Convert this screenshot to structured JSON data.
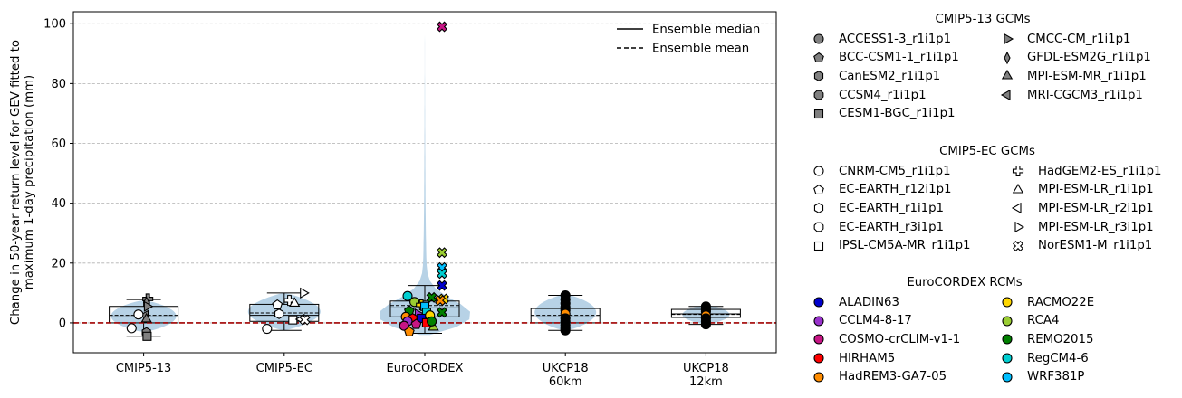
{
  "chart_data": {
    "type": "violin",
    "ylabel": "Change in 50-year return level for GEV fitted to\nmaximum 1-day precipitation (mm)",
    "ylim": [
      -10,
      104
    ],
    "yticks": [
      0,
      20,
      40,
      60,
      80,
      100
    ],
    "grid": "horizontal dashed",
    "reference_line": {
      "y": 0,
      "style": "dashed",
      "color": "#a00000"
    },
    "categories": [
      "CMIP5-13",
      "CMIP5-EC",
      "EuroCORDEX",
      "UKCP18\n60km",
      "UKCP18\n12km"
    ],
    "boxes": [
      {
        "category": "CMIP5-13",
        "whisker_low": -4.5,
        "q1": 0,
        "median": 2,
        "mean": 2.5,
        "q3": 5.5,
        "whisker_high": 7.8,
        "violin_low": -3,
        "violin_high": 7.5
      },
      {
        "category": "CMIP5-EC",
        "whisker_low": -2.5,
        "q1": 0.5,
        "median": 2.5,
        "mean": 3.3,
        "q3": 6.2,
        "whisker_high": 10,
        "violin_low": -2.5,
        "violin_high": 10
      },
      {
        "category": "EuroCORDEX",
        "whisker_low": -3.5,
        "q1": 2,
        "median": 5,
        "mean": 5.8,
        "q3": 7.3,
        "whisker_high": 12.5,
        "violin_low": -4,
        "violin_high": 99
      },
      {
        "category": "UKCP18\n60km",
        "whisker_low": -2.5,
        "q1": 0,
        "median": 2,
        "mean": 2.5,
        "q3": 4.8,
        "whisker_high": 9.2,
        "violin_low": -2.5,
        "violin_high": 9.5
      },
      {
        "category": "UKCP18\n12km",
        "whisker_low": -0.5,
        "q1": 1.8,
        "median": 3,
        "mean": 2.8,
        "q3": 4.5,
        "whisker_high": 5.5,
        "violin_low": -0.5,
        "violin_high": 6
      }
    ],
    "points": [
      {
        "category": 0,
        "x_offset": 0.12,
        "y": 8,
        "marker": "plus",
        "color": "#808080"
      },
      {
        "category": 0,
        "x_offset": 0.08,
        "y": 6.8,
        "marker": "thin-diamond",
        "color": "#808080"
      },
      {
        "category": 0,
        "x_offset": 0.1,
        "y": 5.5,
        "marker": "triangle-right",
        "color": "#808080"
      },
      {
        "category": 0,
        "x_offset": 0.05,
        "y": 2.5,
        "marker": "triangle-left",
        "color": "#808080"
      },
      {
        "category": 0,
        "x_offset": 0.08,
        "y": 1.2,
        "marker": "triangle-up",
        "color": "#808080"
      },
      {
        "category": 0,
        "x_offset": -0.15,
        "y": 2.8,
        "marker": "circle",
        "color": "#ffffff"
      },
      {
        "category": 0,
        "x_offset": -0.35,
        "y": -1.8,
        "marker": "circle",
        "color": "#ffffff"
      },
      {
        "category": 0,
        "x_offset": 0.08,
        "y": -3.2,
        "marker": "hexagon",
        "color": "#808080"
      },
      {
        "category": 0,
        "x_offset": 0.1,
        "y": -4.5,
        "marker": "square",
        "color": "#808080"
      },
      {
        "category": 1,
        "x_offset": 0.55,
        "y": 10,
        "marker": "triangle-right",
        "color": "#ffffff"
      },
      {
        "category": 1,
        "x_offset": 0.15,
        "y": 7.5,
        "marker": "plus",
        "color": "#ffffff"
      },
      {
        "category": 1,
        "x_offset": 0.3,
        "y": 6.5,
        "marker": "triangle-up",
        "color": "#ffffff"
      },
      {
        "category": 1,
        "x_offset": -0.2,
        "y": 6,
        "marker": "pentagon",
        "color": "#ffffff"
      },
      {
        "category": 1,
        "x_offset": -0.15,
        "y": 3,
        "marker": "hexagon",
        "color": "#ffffff"
      },
      {
        "category": 1,
        "x_offset": 0.25,
        "y": 1,
        "marker": "square",
        "color": "#ffffff"
      },
      {
        "category": 1,
        "x_offset": 0.5,
        "y": 1.2,
        "marker": "triangle-left",
        "color": "#ffffff"
      },
      {
        "category": 1,
        "x_offset": 0.6,
        "y": 1,
        "marker": "x-cross",
        "color": "#ffffff"
      },
      {
        "category": 1,
        "x_offset": -0.5,
        "y": -2,
        "marker": "circle",
        "color": "#ffffff"
      },
      {
        "category": 2,
        "x_offset": 0.5,
        "y": 99,
        "marker": "x-cross",
        "color": "#c71585"
      },
      {
        "category": 2,
        "x_offset": 0.5,
        "y": 23.5,
        "marker": "x-cross",
        "color": "#9acd32"
      },
      {
        "category": 2,
        "x_offset": 0.5,
        "y": 18.5,
        "marker": "x-cross",
        "color": "#00bfff"
      },
      {
        "category": 2,
        "x_offset": 0.5,
        "y": 16.5,
        "marker": "x-cross",
        "color": "#00ced1"
      },
      {
        "category": 2,
        "x_offset": 0.5,
        "y": 12.5,
        "marker": "x-cross",
        "color": "#0000cd"
      },
      {
        "category": 2,
        "x_offset": 0.2,
        "y": 8.5,
        "marker": "x-cross",
        "color": "#008000"
      },
      {
        "category": 2,
        "x_offset": 0.55,
        "y": 8,
        "marker": "x-cross",
        "color": "#ffd700"
      },
      {
        "category": 2,
        "x_offset": 0.45,
        "y": 7.5,
        "marker": "x-cross",
        "color": "#ff8c00"
      },
      {
        "category": 2,
        "x_offset": -0.5,
        "y": 9,
        "marker": "circle",
        "color": "#00ced1"
      },
      {
        "category": 2,
        "x_offset": -0.3,
        "y": 7,
        "marker": "circle",
        "color": "#9acd32"
      },
      {
        "category": 2,
        "x_offset": -0.1,
        "y": 6,
        "marker": "plus",
        "color": "#ffd700"
      },
      {
        "category": 2,
        "x_offset": 0,
        "y": 5.5,
        "marker": "square",
        "color": "#00bfff"
      },
      {
        "category": 2,
        "x_offset": -0.45,
        "y": 4,
        "marker": "pentagon",
        "color": "#008000"
      },
      {
        "category": 2,
        "x_offset": -0.2,
        "y": 3,
        "marker": "triangle-right",
        "color": "#9932cc"
      },
      {
        "category": 2,
        "x_offset": 0.05,
        "y": 3.5,
        "marker": "square",
        "color": "#00ced1"
      },
      {
        "category": 2,
        "x_offset": 0.5,
        "y": 3.5,
        "marker": "x-cross",
        "color": "#008000"
      },
      {
        "category": 2,
        "x_offset": -0.55,
        "y": 2,
        "marker": "circle",
        "color": "#ff8c00"
      },
      {
        "category": 2,
        "x_offset": -0.35,
        "y": 1.5,
        "marker": "hexagon",
        "color": "#ff0000"
      },
      {
        "category": 2,
        "x_offset": -0.1,
        "y": 1.5,
        "marker": "square",
        "color": "#0000cd"
      },
      {
        "category": 2,
        "x_offset": 0.15,
        "y": 2.5,
        "marker": "circle",
        "color": "#ffd700"
      },
      {
        "category": 2,
        "x_offset": -0.5,
        "y": 0.5,
        "marker": "circle",
        "color": "#9932cc"
      },
      {
        "category": 2,
        "x_offset": -0.25,
        "y": -0.5,
        "marker": "pentagon",
        "color": "#c71585"
      },
      {
        "category": 2,
        "x_offset": 0.05,
        "y": 0,
        "marker": "square",
        "color": "#ff0000"
      },
      {
        "category": 2,
        "x_offset": -0.6,
        "y": -1,
        "marker": "circle",
        "color": "#c71585"
      },
      {
        "category": 2,
        "x_offset": -0.45,
        "y": -3,
        "marker": "pentagon",
        "color": "#ff8c00"
      },
      {
        "category": 2,
        "x_offset": 0.25,
        "y": -1.5,
        "marker": "triangle-up",
        "color": "#9acd32"
      },
      {
        "category": 2,
        "x_offset": 0.2,
        "y": 0.5,
        "marker": "circle",
        "color": "#008000"
      },
      {
        "category": 3,
        "x_offset": 0,
        "y": 9.2,
        "marker": "circle",
        "color": "#000000"
      },
      {
        "category": 3,
        "x_offset": 0,
        "y": 7.8,
        "marker": "circle",
        "color": "#000000"
      },
      {
        "category": 3,
        "x_offset": 0,
        "y": 6.5,
        "marker": "circle",
        "color": "#000000"
      },
      {
        "category": 3,
        "x_offset": 0,
        "y": 5.2,
        "marker": "circle",
        "color": "#000000"
      },
      {
        "category": 3,
        "x_offset": 0,
        "y": 4.2,
        "marker": "circle",
        "color": "#000000"
      },
      {
        "category": 3,
        "x_offset": 0,
        "y": 3,
        "marker": "circle",
        "color": "#ff8c00"
      },
      {
        "category": 3,
        "x_offset": 0,
        "y": 1.5,
        "marker": "circle",
        "color": "#000000"
      },
      {
        "category": 3,
        "x_offset": 0,
        "y": 0.5,
        "marker": "circle",
        "color": "#000000"
      },
      {
        "category": 3,
        "x_offset": 0,
        "y": -0.8,
        "marker": "circle",
        "color": "#000000"
      },
      {
        "category": 3,
        "x_offset": 0,
        "y": -1.8,
        "marker": "circle",
        "color": "#000000"
      },
      {
        "category": 3,
        "x_offset": 0,
        "y": -2.5,
        "marker": "circle",
        "color": "#000000"
      },
      {
        "category": 4,
        "x_offset": 0,
        "y": 5.5,
        "marker": "circle",
        "color": "#000000"
      },
      {
        "category": 4,
        "x_offset": 0,
        "y": 4.5,
        "marker": "circle",
        "color": "#000000"
      },
      {
        "category": 4,
        "x_offset": 0,
        "y": 3.8,
        "marker": "circle",
        "color": "#000000"
      },
      {
        "category": 4,
        "x_offset": 0,
        "y": 2.5,
        "marker": "circle",
        "color": "#ff8c00"
      },
      {
        "category": 4,
        "x_offset": 0,
        "y": 1.5,
        "marker": "circle",
        "color": "#000000"
      },
      {
        "category": 4,
        "x_offset": 0,
        "y": 0.5,
        "marker": "circle",
        "color": "#000000"
      },
      {
        "category": 4,
        "x_offset": 0,
        "y": -0.5,
        "marker": "circle",
        "color": "#000000"
      }
    ],
    "inner_legend": [
      {
        "label": "Ensemble median",
        "style": "solid"
      },
      {
        "label": "Ensemble mean",
        "style": "dashed"
      }
    ],
    "violin_color": "#b7d2e6"
  },
  "legend": {
    "groups": [
      {
        "title": "CMIP5-13 GCMs",
        "fill": "#808080",
        "items": [
          {
            "label": "ACCESS1-3_r1i1p1",
            "marker": "circle"
          },
          {
            "label": "BCC-CSM1-1_r1i1p1",
            "marker": "pentagon"
          },
          {
            "label": "CanESM2_r1i1p1",
            "marker": "hexagon"
          },
          {
            "label": "CCSM4_r1i1p1",
            "marker": "octagon"
          },
          {
            "label": "CESM1-BGC_r1i1p1",
            "marker": "square"
          },
          {
            "label": "CMCC-CM_r1i1p1",
            "marker": "triangle-right"
          },
          {
            "label": "GFDL-ESM2G_r1i1p1",
            "marker": "thin-diamond"
          },
          {
            "label": "MPI-ESM-MR_r1i1p1",
            "marker": "triangle-up"
          },
          {
            "label": "MRI-CGCM3_r1i1p1",
            "marker": "triangle-left"
          }
        ]
      },
      {
        "title": "CMIP5-EC GCMs",
        "fill": "#ffffff",
        "items": [
          {
            "label": "CNRM-CM5_r1i1p1",
            "marker": "circle"
          },
          {
            "label": "EC-EARTH_r12i1p1",
            "marker": "pentagon"
          },
          {
            "label": "EC-EARTH_r1i1p1",
            "marker": "hexagon"
          },
          {
            "label": "EC-EARTH_r3i1p1",
            "marker": "octagon"
          },
          {
            "label": "IPSL-CM5A-MR_r1i1p1",
            "marker": "square"
          },
          {
            "label": "HadGEM2-ES_r1i1p1",
            "marker": "plus"
          },
          {
            "label": "MPI-ESM-LR_r1i1p1",
            "marker": "triangle-up"
          },
          {
            "label": "MPI-ESM-LR_r2i1p1",
            "marker": "triangle-left"
          },
          {
            "label": "MPI-ESM-LR_r3i1p1",
            "marker": "triangle-right"
          },
          {
            "label": "NorESM1-M_r1i1p1",
            "marker": "x-cross"
          }
        ]
      },
      {
        "title": "EuroCORDEX RCMs",
        "items": [
          {
            "label": "ALADIN63",
            "marker": "circle",
            "color": "#0000cd"
          },
          {
            "label": "CCLM4-8-17",
            "marker": "circle",
            "color": "#9932cc"
          },
          {
            "label": "COSMO-crCLIM-v1-1",
            "marker": "circle",
            "color": "#c71585"
          },
          {
            "label": "HIRHAM5",
            "marker": "circle",
            "color": "#ff0000"
          },
          {
            "label": "HadREM3-GA7-05",
            "marker": "circle",
            "color": "#ff8c00"
          },
          {
            "label": "RACMO22E",
            "marker": "circle",
            "color": "#ffd700"
          },
          {
            "label": "RCA4",
            "marker": "circle",
            "color": "#9acd32"
          },
          {
            "label": "REMO2015",
            "marker": "circle",
            "color": "#008000"
          },
          {
            "label": "RegCM4-6",
            "marker": "circle",
            "color": "#00ced1"
          },
          {
            "label": "WRF381P",
            "marker": "circle",
            "color": "#00bfff"
          }
        ]
      }
    ]
  }
}
